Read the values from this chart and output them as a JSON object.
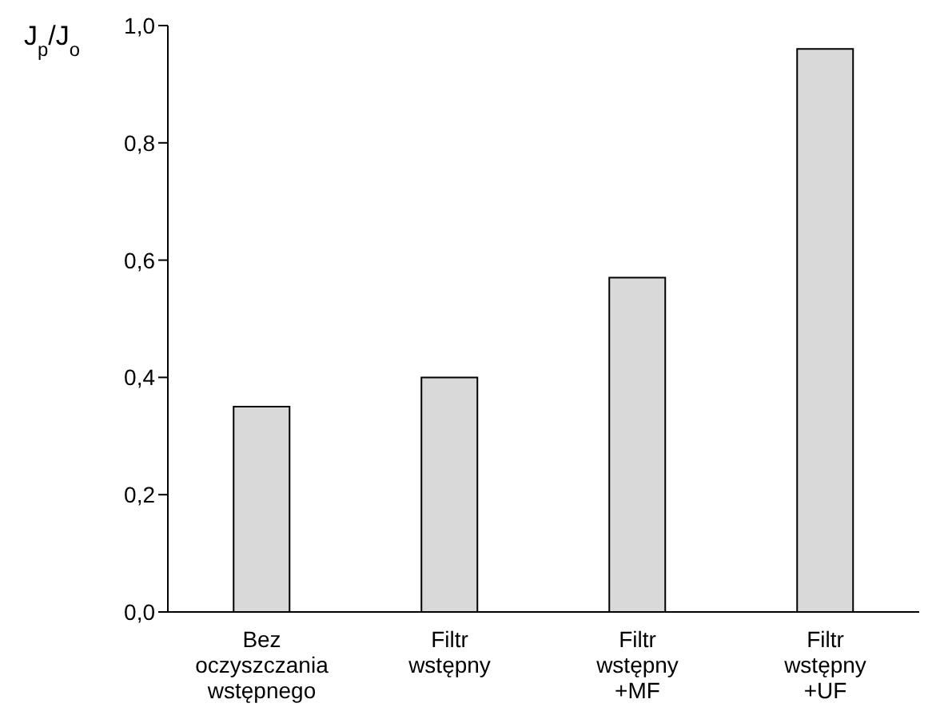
{
  "chart_data": {
    "type": "bar",
    "ylabel": "J$_{p}$/J$_{o}$",
    "categories": [
      "Bez\noczyszczania\nwstępnego",
      "Filtr\nwstępny",
      "Filtr\nwstępny\n+MF",
      "Filtr\nwstępny\n+UF"
    ],
    "values": [
      0.35,
      0.4,
      0.57,
      0.96
    ],
    "color": "#d9d9d9",
    "ylim": [
      0,
      1
    ],
    "yticks": [
      {
        "value": 0,
        "label": "0,0"
      },
      {
        "value": 0.2,
        "label": "0,2"
      },
      {
        "value": 0.4,
        "label": "0,4"
      },
      {
        "value": 0.6,
        "label": "0,6"
      },
      {
        "value": 0.8,
        "label": "0,8"
      },
      {
        "value": 1,
        "label": "1,0"
      }
    ],
    "grid": false,
    "legend": false
  }
}
